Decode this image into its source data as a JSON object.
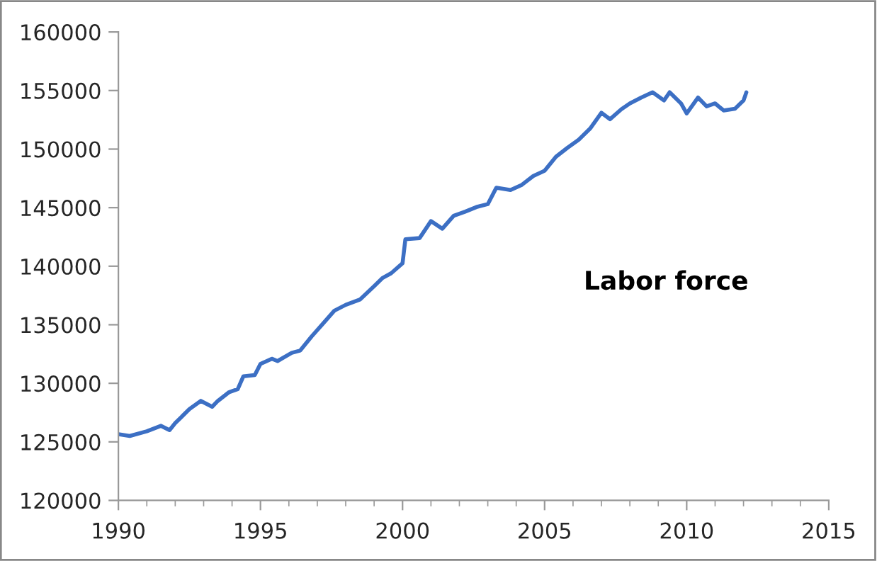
{
  "chart_data": {
    "type": "line",
    "xlim": [
      1990,
      2015
    ],
    "xticks": [
      1990,
      1995,
      2000,
      2005,
      2010,
      2015
    ],
    "ylim": [
      120000,
      160000
    ],
    "yticks": [
      120000,
      125000,
      130000,
      135000,
      140000,
      145000,
      150000,
      155000,
      160000
    ],
    "grid": false,
    "legend": false,
    "marker": "none",
    "line_style": "solid",
    "series": [
      {
        "name": "Labor force",
        "color": "#3c6fc4",
        "x": [
          1990.0,
          1990.4,
          1991.0,
          1991.5,
          1991.8,
          1992.0,
          1992.5,
          1992.9,
          1993.3,
          1993.5,
          1993.9,
          1994.2,
          1994.4,
          1994.8,
          1995.0,
          1995.4,
          1995.6,
          1996.1,
          1996.4,
          1996.8,
          1997.2,
          1997.6,
          1998.0,
          1998.5,
          1999.0,
          1999.3,
          1999.6,
          2000.0,
          2000.1,
          2000.6,
          2001.0,
          2001.4,
          2001.8,
          2002.2,
          2002.6,
          2003.0,
          2003.3,
          2003.8,
          2004.2,
          2004.6,
          2005.0,
          2005.4,
          2005.8,
          2006.2,
          2006.6,
          2007.0,
          2007.3,
          2007.7,
          2008.0,
          2008.4,
          2008.8,
          2009.2,
          2009.4,
          2009.8,
          2010.0,
          2010.4,
          2010.7,
          2011.0,
          2011.3,
          2011.7,
          2012.0,
          2012.1
        ],
        "values": [
          125650,
          125500,
          125900,
          126370,
          126000,
          126600,
          127800,
          128500,
          128000,
          128500,
          129250,
          129500,
          130600,
          130700,
          131650,
          132100,
          131900,
          132600,
          132800,
          134000,
          135100,
          136200,
          136700,
          137150,
          138300,
          139000,
          139400,
          140250,
          142300,
          142400,
          143850,
          143200,
          144300,
          144650,
          145050,
          145300,
          146700,
          146500,
          146950,
          147700,
          148150,
          149350,
          150100,
          150800,
          151750,
          153100,
          152550,
          153400,
          153900,
          154400,
          154850,
          154150,
          154850,
          153900,
          153050,
          154400,
          153650,
          153900,
          153300,
          153450,
          154150,
          154850
        ]
      }
    ]
  }
}
